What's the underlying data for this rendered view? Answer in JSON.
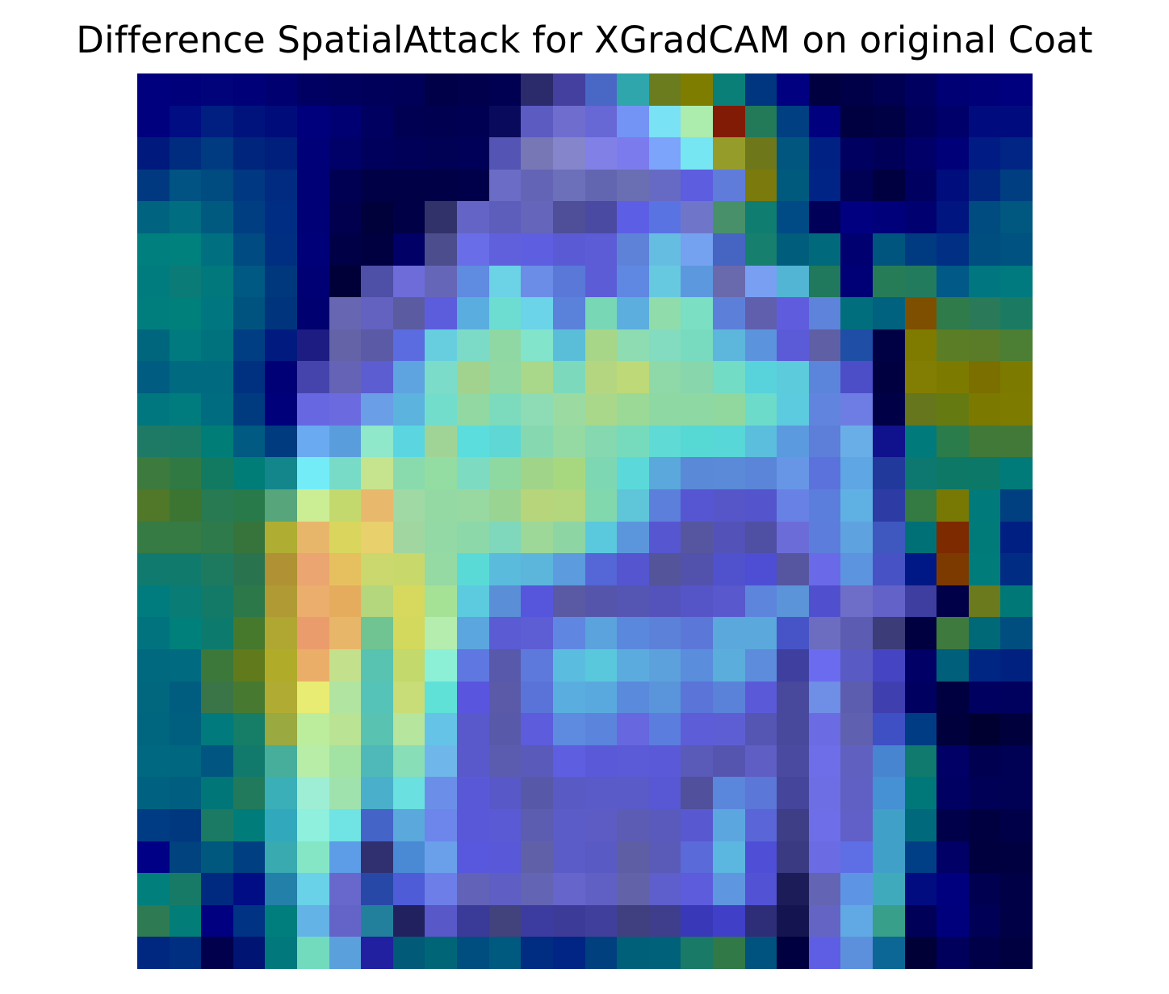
{
  "title": "Difference SpatialAttack for XGradCAM on original Coat",
  "image": {
    "description_name": "heatmap-overlay",
    "grid_size": 28,
    "colors": [
      [
        "#00007f",
        "#00007a",
        "#00037a",
        "#000078",
        "#000070",
        "#000062",
        "#00005d",
        "#00005a",
        "#000058",
        "#000048",
        "#00004c",
        "#000052",
        "#2b2a6b",
        "#4340a0",
        "#4968c5",
        "#2fa6ab",
        "#6b7c1e",
        "#7f7d00",
        "#097f77",
        "#00367f",
        "#000080",
        "#000040",
        "#000048",
        "#000053",
        "#000060",
        "#000075",
        "#000079",
        "#00007f"
      ],
      [
        "#00007f",
        "#000d83",
        "#001f81",
        "#00137d",
        "#000c7a",
        "#00007c",
        "#000072",
        "#000061",
        "#000052",
        "#000050",
        "#000053",
        "#0a0a5c",
        "#5b5bc2",
        "#6f6ece",
        "#6767d6",
        "#7394f4",
        "#7ae2f5",
        "#acecad",
        "#821b06",
        "#227a59",
        "#003f82",
        "#00007f",
        "#000040",
        "#000044",
        "#00005a",
        "#00006a",
        "#000c7e",
        "#000c7e"
      ],
      [
        "#00197c",
        "#002c7f",
        "#003a80",
        "#00257c",
        "#001e7b",
        "#000078",
        "#000069",
        "#00005c",
        "#000059",
        "#000055",
        "#000058",
        "#5354b4",
        "#7777b6",
        "#8585cb",
        "#8080e6",
        "#7c7bee",
        "#7ca4fa",
        "#76e6f3",
        "#969c2a",
        "#6f771b",
        "#00567f",
        "#002184",
        "#000060",
        "#000058",
        "#000068",
        "#000078",
        "#001c84",
        "#002584"
      ],
      [
        "#00397f",
        "#005382",
        "#004b80",
        "#003882",
        "#002b80",
        "#000076",
        "#000052",
        "#000046",
        "#000046",
        "#000046",
        "#00004a",
        "#6a6cc6",
        "#6464b6",
        "#6c70ba",
        "#6266b0",
        "#6a6eb2",
        "#676ac4",
        "#5d5ddf",
        "#5f7cdb",
        "#7b7a0d",
        "#005a7e",
        "#002386",
        "#000054",
        "#000040",
        "#000060",
        "#000d7c",
        "#002780",
        "#003e82"
      ],
      [
        "#00637f",
        "#006d80",
        "#005a80",
        "#003e82",
        "#002d84",
        "#000076",
        "#00004e",
        "#00003a",
        "#000046",
        "#31326a",
        "#6464c6",
        "#5d5ebc",
        "#6465bb",
        "#4e4f98",
        "#4a4aa2",
        "#5d5ee6",
        "#5973e3",
        "#6f76ca",
        "#48906a",
        "#0f7d70",
        "#004b85",
        "#000058",
        "#000080",
        "#00007a",
        "#000070",
        "#001580",
        "#004b80",
        "#00577f"
      ],
      [
        "#007f7f",
        "#00817e",
        "#006f80",
        "#004b81",
        "#002f82",
        "#000078",
        "#000046",
        "#000040",
        "#000066",
        "#4c4d8c",
        "#6a6de8",
        "#6060dd",
        "#5d5ee0",
        "#5a5bd4",
        "#5c5dd6",
        "#5e82d8",
        "#66bde2",
        "#74a1f0",
        "#4664c1",
        "#177f6e",
        "#005d7c",
        "#006a7c",
        "#000070",
        "#00557f",
        "#003b82",
        "#002f84",
        "#004e80",
        "#005280"
      ],
      [
        "#007b7e",
        "#0b7b77",
        "#00787c",
        "#005983",
        "#00387e",
        "#000074",
        "#000038",
        "#4e4fa6",
        "#6d6cd8",
        "#6666b8",
        "#5f8be0",
        "#6cd2e5",
        "#6c8de7",
        "#5978d8",
        "#5c5dd6",
        "#5f88e2",
        "#67c9e0",
        "#5c98de",
        "#6969ad",
        "#789ff2",
        "#52b5d4",
        "#20795c",
        "#000076",
        "#277c58",
        "#237b5d",
        "#005986",
        "#007680",
        "#007a7e"
      ],
      [
        "#007e7e",
        "#00807b",
        "#007780",
        "#00537f",
        "#00357d",
        "#000070",
        "#6766b3",
        "#6362c0",
        "#5b5ba2",
        "#5c5ddc",
        "#5aaddf",
        "#6ddcd1",
        "#6bd4e8",
        "#5a82da",
        "#78d8b6",
        "#5caede",
        "#90dcab",
        "#7adfc3",
        "#5c80da",
        "#5f5fae",
        "#5f5ddd",
        "#5d84da",
        "#006e7d",
        "#00627f",
        "#7f4f00",
        "#2f7b4a",
        "#2a7959",
        "#1a7b62"
      ],
      [
        "#00667e",
        "#007a7e",
        "#00727e",
        "#003e84",
        "#001a7f",
        "#1c1c82",
        "#6563a8",
        "#5b5aa6",
        "#5b6ce0",
        "#67cedf",
        "#7cdbc6",
        "#8fd8a3",
        "#81e4cb",
        "#5bbed9",
        "#a8d688",
        "#8ddcb2",
        "#83dcbf",
        "#78dbbf",
        "#5db6db",
        "#5b94dc",
        "#5b5bd8",
        "#5f5fa6",
        "#1f4ea6",
        "#000044",
        "#7f7a00",
        "#5b7d25",
        "#5a7c28",
        "#4c7e34"
      ],
      [
        "#005c80",
        "#006b80",
        "#006b80",
        "#003180",
        "#000076",
        "#4444ac",
        "#6463b6",
        "#5c5dd0",
        "#5ea4e0",
        "#7bdcc9",
        "#a2d38e",
        "#91d8a3",
        "#a9d88a",
        "#7dd9bc",
        "#b5d680",
        "#bed977",
        "#8fd8a8",
        "#88d6ac",
        "#72dcc5",
        "#58d3dc",
        "#5ccbdb",
        "#5b85da",
        "#4b4ec7",
        "#000040",
        "#827e04",
        "#7c7b00",
        "#7b6f00",
        "#7d7a00"
      ],
      [
        "#00777f",
        "#007b7e",
        "#006c80",
        "#003b7f",
        "#00007b",
        "#6767e2",
        "#6b6bdf",
        "#6a9ee7",
        "#5cb3de",
        "#73ddcb",
        "#91d8a3",
        "#7cdbbd",
        "#8ddcb5",
        "#9bdba2",
        "#a9d88a",
        "#9ad996",
        "#8ed8a4",
        "#8ed8a4",
        "#90d89d",
        "#6ddbc9",
        "#5ccadf",
        "#6185de",
        "#6e7de3",
        "#000046",
        "#65761c",
        "#667a12",
        "#7c7900",
        "#7d7b00"
      ],
      [
        "#1f7a65",
        "#1a7a64",
        "#007d77",
        "#005a81",
        "#003a7f",
        "#6aaaf0",
        "#5a9ddd",
        "#8fe8c9",
        "#5bd6e0",
        "#a0d497",
        "#5cdddd",
        "#5fd7d4",
        "#86d8b0",
        "#95d9a3",
        "#85d8b0",
        "#76dbbd",
        "#5fdad5",
        "#56d9d5",
        "#57d7d7",
        "#5bbedd",
        "#5b9ade",
        "#5d7ed9",
        "#6aaee7",
        "#10118c",
        "#007a7a",
        "#2a7c4b",
        "#407938",
        "#427939"
      ],
      [
        "#3d7a3d",
        "#317942",
        "#127a61",
        "#007d77",
        "#13868c",
        "#74ecf8",
        "#77dbc7",
        "#c6e38d",
        "#89dbad",
        "#93dca2",
        "#7ddbc2",
        "#8ed8a2",
        "#a0d488",
        "#a7d880",
        "#7ed7b3",
        "#5bd9da",
        "#5aa8dc",
        "#5a89d8",
        "#5a8ad8",
        "#5b85d8",
        "#6796e6",
        "#5b72dc",
        "#5fa6e4",
        "#22399c",
        "#0d7870",
        "#0e7867",
        "#0c7867",
        "#007b7a"
      ],
      [
        "#507828",
        "#3c7532",
        "#277a51",
        "#287a4b",
        "#57a57a",
        "#cbed94",
        "#c3d96e",
        "#e8b86d",
        "#a1d9a5",
        "#94d9a3",
        "#98d9a2",
        "#9ad492",
        "#b7d57b",
        "#b4d67c",
        "#81d8ad",
        "#5fc6da",
        "#5b7fdb",
        "#5656d2",
        "#5656c8",
        "#5454cc",
        "#6781e4",
        "#5b7edc",
        "#5fb1e4",
        "#2c3ca4",
        "#337a43",
        "#787905",
        "#007a7a",
        "#003f80"
      ],
      [
        "#367a44",
        "#367a44",
        "#2f7a4a",
        "#36743c",
        "#b0ad33",
        "#e8b66b",
        "#d9d55d",
        "#e8d06d",
        "#a1d6a1",
        "#92d9a6",
        "#8cd8a9",
        "#7fd8bb",
        "#9dd898",
        "#8ed5a4",
        "#5bc9dd",
        "#5b96dc",
        "#5656d0",
        "#5656a0",
        "#5252b8",
        "#4f4fa4",
        "#6c6cd8",
        "#5d7ddc",
        "#5ea2e0",
        "#3e58c0",
        "#007077",
        "#7d2a00",
        "#007b79",
        "#001f82"
      ],
      [
        "#0f7a6d",
        "#107a6c",
        "#1e7a5f",
        "#29744f",
        "#b09133",
        "#eba570",
        "#e6c05e",
        "#cad86d",
        "#c9d86a",
        "#95d9a3",
        "#5adad7",
        "#5bbbdc",
        "#5cb6dc",
        "#5b9bde",
        "#5566d6",
        "#5455cf",
        "#54549a",
        "#5252ac",
        "#4f52cc",
        "#4e4ed4",
        "#5656a0",
        "#6a6ae8",
        "#5c94e0",
        "#4752c4",
        "#001886",
        "#7c3a00",
        "#007c7a",
        "#002c83"
      ],
      [
        "#007c7e",
        "#087c75",
        "#137a68",
        "#2c7849",
        "#b09a33",
        "#ebae6c",
        "#e6ac5e",
        "#b4d67c",
        "#d6d95d",
        "#a5e296",
        "#5ccadf",
        "#5a8fd8",
        "#5656dc",
        "#5959a4",
        "#5555ac",
        "#5555b4",
        "#5353bb",
        "#5555c8",
        "#5959cd",
        "#5d85dc",
        "#5b94d8",
        "#5050cf",
        "#6e6ec8",
        "#6262c8",
        "#3e3ea0",
        "#000048",
        "#6a7a1c",
        "#007877",
        "#004a81"
      ],
      [
        "#00737f",
        "#00807b",
        "#0c7b6d",
        "#46792c",
        "#b0a632",
        "#eb9c6c",
        "#e8b668",
        "#6fc492",
        "#d3d95c",
        "#b4edae",
        "#5ca6df",
        "#5b5bd3",
        "#5d5dd4",
        "#5f87e1",
        "#5aa3dc",
        "#5a88dc",
        "#5b82d8",
        "#5b77d8",
        "#5aa8dc",
        "#5aa8dc",
        "#4654c8",
        "#6c6cc0",
        "#5c5cb2",
        "#3c3c78",
        "#000040",
        "#3e7a3e",
        "#006978",
        "#004d80"
      ],
      [
        "#006980",
        "#006a80",
        "#3b783a",
        "#607a1c",
        "#b0ac2a",
        "#ebae68",
        "#c3e08d",
        "#58c3b0",
        "#c3d96c",
        "#8cf0d6",
        "#5f78e1",
        "#5859ab",
        "#5d79dc",
        "#5abddf",
        "#5ac8dc",
        "#5cabdf",
        "#5ca0dc",
        "#5a8ddc",
        "#5baddc",
        "#5d8cdc",
        "#3f3fa0",
        "#6b6bf0",
        "#5a5ac4",
        "#4545c4",
        "#000066",
        "#005f7a",
        "#002684",
        "#002180"
      ],
      [
        "#00677f",
        "#005d80",
        "#3a7548",
        "#477a30",
        "#b0ac33",
        "#e8ec72",
        "#b0e4a0",
        "#56c3b8",
        "#c8dc77",
        "#5fe1d7",
        "#5955de",
        "#5a5aa8",
        "#5a73d8",
        "#5aaedf",
        "#5aa9de",
        "#5a8adc",
        "#5a94da",
        "#5a74d8",
        "#5a82d8",
        "#5a5ad8",
        "#48489c",
        "#6f8ee6",
        "#5d5db0",
        "#3f3fb0",
        "#000060",
        "#000040",
        "#000060",
        "#00005e"
      ],
      [
        "#00657f",
        "#005f7e",
        "#007a7c",
        "#167d67",
        "#9aa940",
        "#bbed9d",
        "#bae393",
        "#59c2b0",
        "#b6e59d",
        "#65c3e8",
        "#5959cc",
        "#5959aa",
        "#5c5cdc",
        "#5e8ae0",
        "#5b85dc",
        "#6767e0",
        "#5b7ede",
        "#5d5dd8",
        "#5e5ed4",
        "#5555b4",
        "#48489c",
        "#6b6be4",
        "#6060b0",
        "#3f4fc4",
        "#003c84",
        "#00003c",
        "#000030",
        "#00003c"
      ],
      [
        "#006880",
        "#006780",
        "#005680",
        "#127a6c",
        "#47ae9c",
        "#b8eda7",
        "#a2e2a2",
        "#4eb9b8",
        "#87deb7",
        "#6fb6ea",
        "#5959cc",
        "#5b5bb0",
        "#5a5aba",
        "#5e5ee1",
        "#5a5ad8",
        "#5b5bd8",
        "#5a5ad8",
        "#5a5ab8",
        "#5555b0",
        "#5e5ec4",
        "#4a4aa0",
        "#6e6ee8",
        "#6060c0",
        "#4885d0",
        "#0f7a6d",
        "#000066",
        "#000050",
        "#000054"
      ],
      [
        "#006280",
        "#005e80",
        "#007678",
        "#217a5b",
        "#3aafb8",
        "#9deed5",
        "#a0e2ae",
        "#4aafcb",
        "#6ae0e0",
        "#6b8fe8",
        "#5959d8",
        "#5858c8",
        "#5858a8",
        "#5a5ac4",
        "#5a5ac8",
        "#5a5ac8",
        "#5858d4",
        "#50509c",
        "#5a86dc",
        "#5b77d8",
        "#45459c",
        "#6e6ee4",
        "#6060c4",
        "#4690d4",
        "#00787a",
        "#000062",
        "#000056",
        "#000054"
      ],
      [
        "#003c84",
        "#003880",
        "#1b7a64",
        "#007d7b",
        "#32a8bc",
        "#8ef0dd",
        "#70e4e4",
        "#4564c8",
        "#5aa8dc",
        "#6c86ec",
        "#5858d8",
        "#5a5ad4",
        "#5c5cb0",
        "#5c5cc8",
        "#5c5cc4",
        "#5c5cb4",
        "#5a5abc",
        "#5858d0",
        "#5ca6e0",
        "#5a66d8",
        "#3e3e86",
        "#6e6ee8",
        "#6060c8",
        "#40a0c8",
        "#006a7c",
        "#00004a",
        "#000040",
        "#000048"
      ],
      [
        "#000086",
        "#00437e",
        "#00587e",
        "#003f82",
        "#38aab0",
        "#84e6c5",
        "#5d9de7",
        "#303070",
        "#4a8ad4",
        "#6aa0ea",
        "#5858de",
        "#5858d8",
        "#6060a8",
        "#5c5cc8",
        "#5a5ac4",
        "#5e5ea4",
        "#5a5ab8",
        "#5a6ad8",
        "#5bb6e0",
        "#4e4ed6",
        "#3a3a82",
        "#6b6be4",
        "#5e6ee4",
        "#40a0c8",
        "#003f86",
        "#000066",
        "#00003e",
        "#000040"
      ],
      [
        "#007f7d",
        "#177a66",
        "#002a80",
        "#000d84",
        "#2380a8",
        "#69d2e8",
        "#6868cc",
        "#2848a8",
        "#4e5cd8",
        "#6d7ee8",
        "#6262b8",
        "#5e5ec4",
        "#6464b4",
        "#6565cc",
        "#6060c4",
        "#6262a8",
        "#5e5ecc",
        "#5c5cdc",
        "#5e96e0",
        "#5252d4",
        "#1c1c58",
        "#6464b4",
        "#5e94e4",
        "#40aabd",
        "#000c80",
        "#00007e",
        "#000050",
        "#000046"
      ],
      [
        "#2e7a52",
        "#027d78",
        "#000080",
        "#003384",
        "#007e7e",
        "#63b3e6",
        "#6363c8",
        "#23809c",
        "#212160",
        "#5858c8",
        "#3a3a98",
        "#42427c",
        "#3c3ca0",
        "#3c3c98",
        "#40409c",
        "#404080",
        "#3e3e8c",
        "#3838b8",
        "#3f3fc8",
        "#2e2e78",
        "#141450",
        "#6464c4",
        "#60a9e4",
        "#379f8a",
        "#000058",
        "#00007c",
        "#000056",
        "#000046"
      ],
      [
        "#002880",
        "#002e80",
        "#00004c",
        "#001474",
        "#00787c",
        "#73dbbd",
        "#5aa0dc",
        "#2020a0",
        "#005a78",
        "#006677",
        "#004e80",
        "#005a80",
        "#002c82",
        "#002584",
        "#00407f",
        "#00607a",
        "#00617a",
        "#197a67",
        "#317947",
        "#00537e",
        "#000040",
        "#5e5ee4",
        "#5c90dc",
        "#0c6796",
        "#000036",
        "#00005c",
        "#000048",
        "#000040"
      ]
    ]
  }
}
